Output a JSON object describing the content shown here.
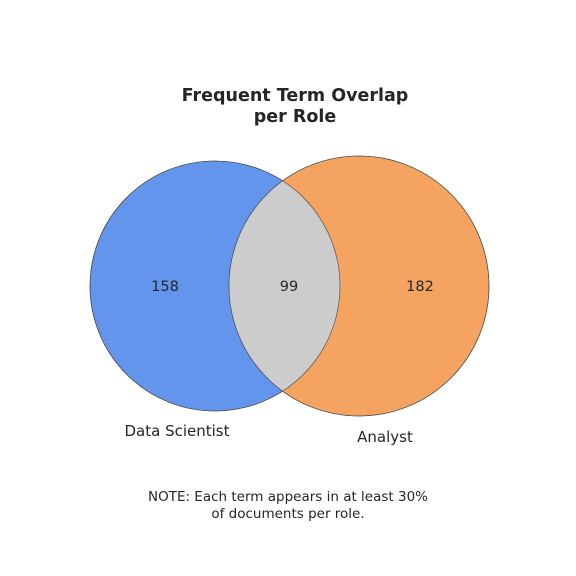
{
  "title": {
    "line1": "Frequent Term Overlap",
    "line2": "per Role"
  },
  "sets": [
    {
      "name": "Data Scientist",
      "only_count": "158",
      "color": "#6495ED"
    },
    {
      "name": "Analyst",
      "only_count": "182",
      "color": "#F4A460"
    }
  ],
  "intersection": {
    "count": "99",
    "color": "#CCCCCC"
  },
  "note": {
    "line1": "NOTE: Each term appears in at least 30%",
    "line2": "of documents per role."
  }
}
